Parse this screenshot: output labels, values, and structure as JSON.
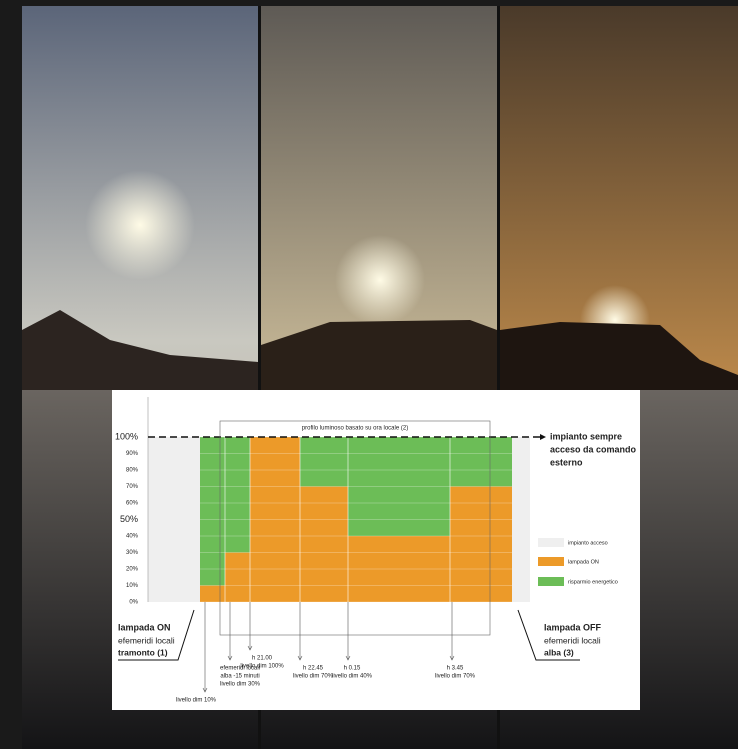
{
  "chart_data": {
    "type": "step",
    "title": "profilo luminoso basato su ora locale (2)",
    "series": [
      {
        "name": "lampada ON",
        "color": "#ec9a29",
        "values": [
          10,
          30,
          100,
          70,
          40,
          70
        ]
      },
      {
        "name": "risparmio energetico",
        "color": "#6cbd57",
        "values": [
          90,
          70,
          0,
          30,
          60,
          30
        ]
      }
    ],
    "background_label": "impianto acceso",
    "background_color": "#efefef",
    "ylim": [
      0,
      100
    ],
    "yticks": [
      {
        "value": 0,
        "label": "0%"
      },
      {
        "value": 10,
        "label": "10%"
      },
      {
        "value": 20,
        "label": "20%"
      },
      {
        "value": 30,
        "label": "30%"
      },
      {
        "value": 40,
        "label": "40%"
      },
      {
        "value": 50,
        "label": "50%"
      },
      {
        "value": 60,
        "label": "60%"
      },
      {
        "value": 70,
        "label": "70%"
      },
      {
        "value": 80,
        "label": "80%"
      },
      {
        "value": 90,
        "label": "90%"
      },
      {
        "value": 100,
        "label": "100%"
      }
    ],
    "grid": true,
    "annotations": [
      [
        "livello dim 10%"
      ],
      [
        "efemeridi locali",
        "alba -15 minuti",
        "livello dim 30%"
      ],
      [
        "h 21.00",
        "livello dim 100%"
      ],
      [
        "h 22.45",
        "livello dim 70%"
      ],
      [
        "h 0.15",
        "livello dim 40%"
      ],
      [
        "h 3.45",
        "livello dim 70%"
      ]
    ],
    "right_note": [
      "impianto sempre",
      "acceso da comando",
      "esterno"
    ],
    "start": {
      "title": "lampada ON",
      "lines": [
        "efemeridi locali",
        "tramonto (1)"
      ]
    },
    "end": {
      "title": "lampada OFF",
      "lines": [
        "efemeridi locali",
        "alba (3)"
      ]
    }
  }
}
